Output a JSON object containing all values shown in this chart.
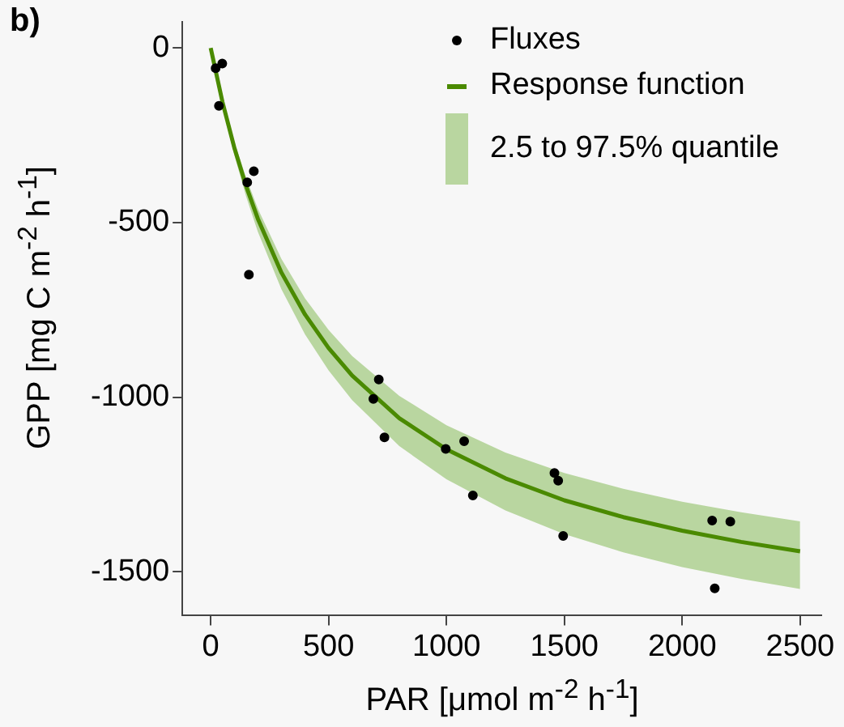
{
  "chart_data": {
    "type": "scatter",
    "title": "b)",
    "xlabel": "PAR [μmol m$^{-2}$ h$^{-1}$]",
    "ylabel": "GPP [mg C m$^{-2}$ h$^{-1}$]",
    "xlim": [
      -120,
      2590
    ],
    "ylim": [
      -1625,
      75
    ],
    "xticks": [
      0,
      500,
      1000,
      1500,
      2000,
      2500
    ],
    "yticks": [
      -1500,
      -1000,
      -500,
      0
    ],
    "grid": false,
    "legend": "top right",
    "annotations": [
      "2.5 to 97.5% quantile"
    ],
    "series": [
      {
        "name": "Response function",
        "type": "line",
        "color": "#4a8a00",
        "marker": "none",
        "x": [
          0,
          50,
          100,
          150,
          200,
          300,
          400,
          500,
          600,
          800,
          1000,
          1250,
          1500,
          1750,
          2000,
          2250,
          2500
        ],
        "values": [
          0,
          -155,
          -285,
          -395,
          -489,
          -643,
          -763,
          -859,
          -938,
          -1060,
          -1149,
          -1232,
          -1295,
          -1343,
          -1382,
          -1414,
          -1441
        ],
        "lower": [
          0,
          -167,
          -306,
          -425,
          -526,
          -691,
          -820,
          -923,
          -1008,
          -1140,
          -1235,
          -1324,
          -1392,
          -1444,
          -1486,
          -1520,
          -1549
        ],
        "upper": [
          0,
          -146,
          -268,
          -371,
          -460,
          -604,
          -717,
          -807,
          -882,
          -996,
          -1080,
          -1158,
          -1217,
          -1262,
          -1299,
          -1329,
          -1355
        ]
      },
      {
        "name": "Fluxes",
        "color": "#000000",
        "marker": "circle",
        "x": [
          21,
          49,
          35,
          183,
          155,
          162,
          713,
          690,
          737,
          997,
          1075,
          1112,
          1458,
          1474,
          1495,
          2127,
          2204,
          2138
        ],
        "values": [
          -58,
          -45,
          -166,
          -353,
          -385,
          -649,
          -949,
          -1005,
          -1115,
          -1148,
          -1126,
          -1281,
          -1217,
          -1239,
          -1397,
          -1353,
          -1356,
          -1547
        ]
      }
    ]
  }
}
